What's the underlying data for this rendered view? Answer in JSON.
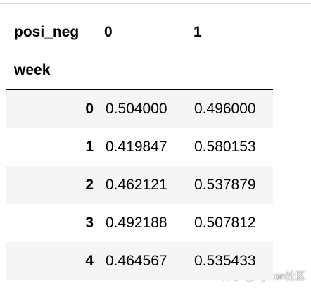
{
  "table": {
    "header": [
      "posi_neg",
      "0",
      "1"
    ],
    "index_name": "week",
    "rows": [
      [
        "0",
        "0.504000",
        "0.496000"
      ],
      [
        "1",
        "0.419847",
        "0.580153"
      ],
      [
        "2",
        "0.462121",
        "0.537879"
      ],
      [
        "3",
        "0.492188",
        "0.507812"
      ],
      [
        "4",
        "0.464567",
        "0.535433"
      ]
    ]
  },
  "watermark": "知乎 @Python社区"
}
